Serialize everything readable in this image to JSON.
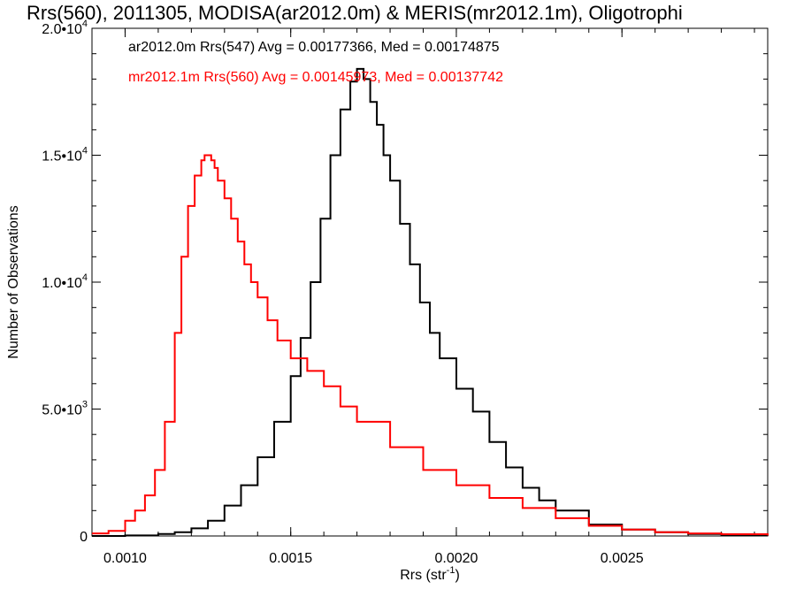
{
  "chart_data": {
    "type": "line",
    "title": "Rrs(560), 2011305, MODISA(ar2012.0m) & MERIS(mr2012.1m), Oligotrophi",
    "xlabel_main": "Rrs (str",
    "xlabel_sup": "-1",
    "xlabel_end": ")",
    "ylabel": "Number of Observations",
    "xlim": [
      0.0009,
      0.00294
    ],
    "ylim": [
      0,
      20000
    ],
    "x_ticks": [
      {
        "value": 0.001,
        "label": "0.0010"
      },
      {
        "value": 0.0015,
        "label": "0.0015"
      },
      {
        "value": 0.002,
        "label": "0.0020"
      },
      {
        "value": 0.0025,
        "label": "0.0025"
      }
    ],
    "y_ticks": [
      {
        "value": 0,
        "mant": "0",
        "exp": ""
      },
      {
        "value": 5000,
        "mant": "5.0•10",
        "exp": "3"
      },
      {
        "value": 10000,
        "mant": "1.0•10",
        "exp": "4"
      },
      {
        "value": 15000,
        "mant": "1.5•10",
        "exp": "4"
      },
      {
        "value": 20000,
        "mant": "2.0•10",
        "exp": "4"
      }
    ],
    "annotations": [
      {
        "text": "ar2012.0m Rrs(547) Avg = 0.00177366, Med = 0.00174875",
        "color": "#000000"
      },
      {
        "text": "mr2012.1m Rrs(560) Avg = 0.00145973, Med = 0.00137742",
        "color": "#ff0000"
      }
    ],
    "series": [
      {
        "color": "#000000",
        "x": [
          0.0009,
          0.001,
          0.0011,
          0.00115,
          0.0012,
          0.00125,
          0.0013,
          0.00135,
          0.0014,
          0.00145,
          0.0015,
          0.00153,
          0.00156,
          0.00159,
          0.00162,
          0.00165,
          0.00168,
          0.0017,
          0.00172,
          0.00174,
          0.00176,
          0.00178,
          0.0018,
          0.00183,
          0.00186,
          0.00189,
          0.00192,
          0.00195,
          0.002,
          0.00205,
          0.0021,
          0.00215,
          0.0022,
          0.00225,
          0.0023,
          0.0024,
          0.0025,
          0.0026,
          0.0027,
          0.0028,
          0.00294
        ],
        "y": [
          0,
          20,
          80,
          150,
          300,
          600,
          1200,
          2000,
          3100,
          4500,
          6300,
          7800,
          10000,
          12500,
          15000,
          16800,
          17900,
          18400,
          18000,
          17100,
          16200,
          15000,
          14000,
          12300,
          10700,
          9200,
          8000,
          7000,
          5800,
          4900,
          3700,
          2700,
          1900,
          1400,
          1000,
          450,
          250,
          150,
          80,
          40,
          10
        ]
      },
      {
        "color": "#ff0000",
        "x": [
          0.0009,
          0.00095,
          0.001,
          0.00103,
          0.00106,
          0.00109,
          0.00112,
          0.00115,
          0.00117,
          0.00119,
          0.00121,
          0.00123,
          0.00124,
          0.00125,
          0.00126,
          0.00127,
          0.00128,
          0.0013,
          0.00132,
          0.00134,
          0.00136,
          0.00138,
          0.0014,
          0.00143,
          0.00146,
          0.0015,
          0.00155,
          0.0016,
          0.00165,
          0.0017,
          0.0018,
          0.0019,
          0.002,
          0.0021,
          0.0022,
          0.0023,
          0.0024,
          0.0025,
          0.0026,
          0.0027,
          0.0028,
          0.00294
        ],
        "y": [
          100,
          200,
          600,
          1000,
          1600,
          2600,
          4500,
          8000,
          11000,
          13000,
          14200,
          14800,
          15000,
          15000,
          14800,
          14500,
          14000,
          13300,
          12500,
          11600,
          10700,
          10000,
          9400,
          8500,
          7700,
          7000,
          6500,
          5900,
          5100,
          4500,
          3500,
          2600,
          2000,
          1500,
          1100,
          700,
          400,
          250,
          150,
          100,
          70,
          20
        ]
      }
    ]
  }
}
